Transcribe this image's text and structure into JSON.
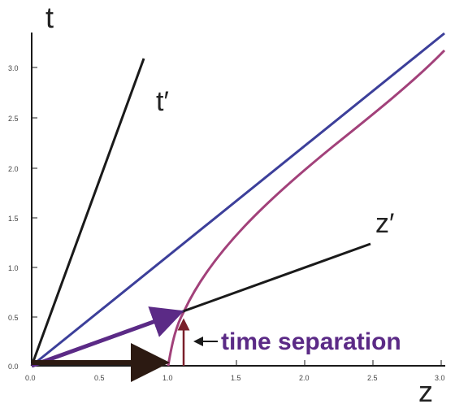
{
  "labels": {
    "t_axis": "t",
    "z_axis": "z",
    "t_prime": "t′",
    "z_prime": "z′",
    "annotation": "time separation"
  },
  "ticks": {
    "x": [
      "0.0",
      "0.5",
      "1.0",
      "1.5",
      "2.0",
      "2.5",
      "3.0"
    ],
    "y": [
      "0.0",
      "0.5",
      "1.0",
      "1.5",
      "2.0",
      "2.5",
      "3.0"
    ]
  },
  "colors": {
    "axes": "#1a1a1a",
    "light_line": "#3c3f9a",
    "hyperbola": "#a2417a",
    "boosted_axes": "#1a1a1a",
    "purple_vector": "#5b2a86",
    "dark_vector": "#2c1a12",
    "time_arrow": "#7a1f2a",
    "annotation": "#5b2a86"
  }
}
